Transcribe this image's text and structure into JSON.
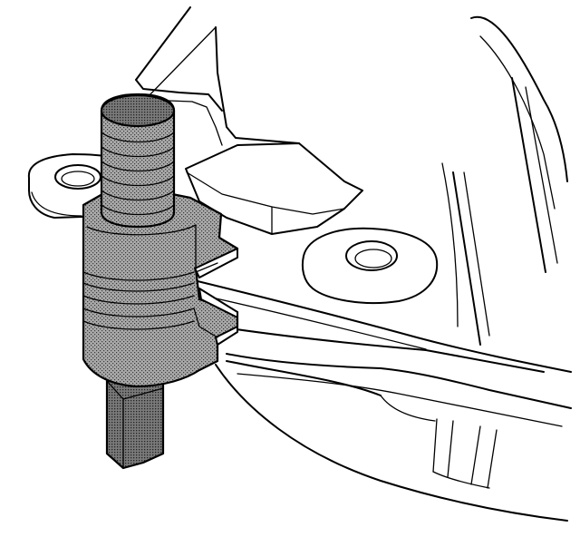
{
  "figure": {
    "colors": {
      "line": "#000000",
      "background": "#ffffff",
      "tool_shading": "#8a8a8a",
      "tool_shading_dark": "#6e6e6e"
    }
  }
}
